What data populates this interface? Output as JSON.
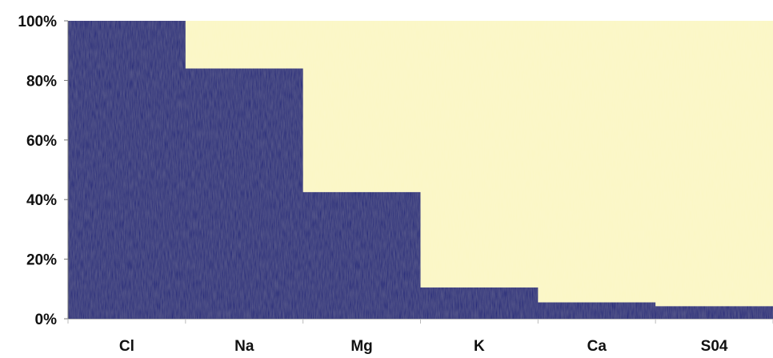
{
  "chart_data": {
    "type": "bar",
    "stacked_to_100": true,
    "categories": [
      "Cl",
      "Na",
      "Mg",
      "K",
      "Ca",
      "S04"
    ],
    "series": [
      {
        "values": [
          100,
          84,
          42.5,
          10.5,
          5.5,
          4.2
        ],
        "color": "#1d2478"
      },
      {
        "values": [
          0,
          16,
          57.5,
          89.5,
          94.5,
          95.8
        ],
        "color": "#fbf7c4"
      }
    ],
    "ylim": [
      0,
      100
    ],
    "yticks": [
      "0%",
      "20%",
      "40%",
      "60%",
      "80%",
      "100%"
    ],
    "ytick_values": [
      0,
      20,
      40,
      60,
      80,
      100
    ],
    "gridlines": false,
    "legend": "none",
    "bar_gap": "none"
  }
}
